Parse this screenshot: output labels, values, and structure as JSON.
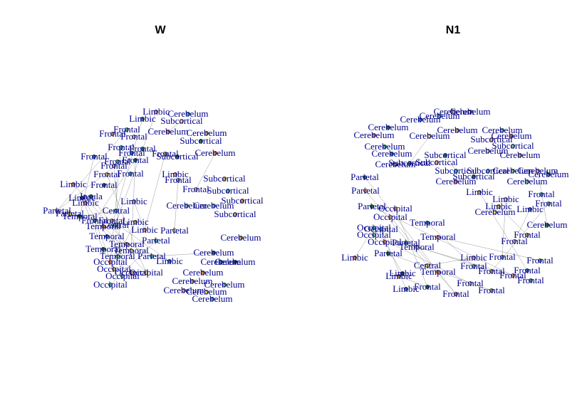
{
  "colors": {
    "label": "#00008B",
    "node_palette": [
      "#F4A582",
      "#FDDB6D",
      "#3CB9C0",
      "#2C7FB8",
      "#1B7837",
      "#F58231",
      "#C9B35B",
      "#74C3A6"
    ]
  },
  "panels": [
    {
      "id": "W",
      "title": "W",
      "nodes": [
        {
          "label": "Limbic"
        },
        {
          "label": "Subcortical"
        },
        {
          "label": "Cerebelum"
        },
        {
          "label": "Limbic"
        },
        {
          "label": "Subcortical"
        },
        {
          "label": "Cerebelum"
        },
        {
          "label": "Cerebelum"
        },
        {
          "label": "Frontal"
        },
        {
          "label": "Frontal"
        },
        {
          "label": "Frontal"
        },
        {
          "label": "Frontal"
        },
        {
          "label": "Frontal"
        },
        {
          "label": "Subcortical"
        },
        {
          "label": "Cerebelum"
        },
        {
          "label": "Frontal"
        },
        {
          "label": "Frontal"
        },
        {
          "label": "Frontal"
        },
        {
          "label": "Frontal"
        },
        {
          "label": "Frontal"
        },
        {
          "label": "Frontal"
        },
        {
          "label": "Frontal"
        },
        {
          "label": "Limbic"
        },
        {
          "label": "Subcortical"
        },
        {
          "label": "Frontal"
        },
        {
          "label": "Limbic"
        },
        {
          "label": "Frontal"
        },
        {
          "label": "Subcortical"
        },
        {
          "label": "Limbic"
        },
        {
          "label": "Insula"
        },
        {
          "label": "Limbic"
        },
        {
          "label": "Limbic"
        },
        {
          "label": "Cerebelum"
        },
        {
          "label": "Parietal"
        },
        {
          "label": "Parietal"
        },
        {
          "label": "Central"
        },
        {
          "label": "Frontal"
        },
        {
          "label": "Temporal"
        },
        {
          "label": "Temporal"
        },
        {
          "label": "Subcortical"
        },
        {
          "label": "Cerebelum"
        },
        {
          "label": "Limbic"
        },
        {
          "label": "Parietal"
        },
        {
          "label": "Parietal"
        },
        {
          "label": "Temporal"
        },
        {
          "label": "Temporal"
        },
        {
          "label": "Temporal"
        },
        {
          "label": "Cerebelum"
        },
        {
          "label": "Central"
        },
        {
          "label": "Frontal"
        },
        {
          "label": "Temporal"
        },
        {
          "label": "Parietal"
        },
        {
          "label": "Limbic"
        },
        {
          "label": "Cerebelum"
        },
        {
          "label": "Occipital"
        },
        {
          "label": "Occipital"
        },
        {
          "label": "Occipital"
        },
        {
          "label": "Occipital"
        },
        {
          "label": "Occipital"
        },
        {
          "label": "Occipital"
        },
        {
          "label": "Cerebelum"
        },
        {
          "label": "Cerebelum"
        },
        {
          "label": "Cerebelum"
        },
        {
          "label": "Cerebelum"
        },
        {
          "label": "Cerebelum"
        },
        {
          "label": "Cerebelum"
        },
        {
          "label": "Cerebelum"
        },
        {
          "label": "Cerebelum"
        },
        {
          "label": "Frontal"
        },
        {
          "label": "Frontal"
        },
        {
          "label": "Subcortical"
        },
        {
          "label": "Limbic"
        },
        {
          "label": "Temporal"
        }
      ]
    },
    {
      "id": "N1",
      "title": "N1",
      "nodes": [
        {
          "label": "Cerebelum"
        },
        {
          "label": "Cerebelum"
        },
        {
          "label": "Cerebelum"
        },
        {
          "label": "Cerebelum"
        },
        {
          "label": "Cerebelum"
        },
        {
          "label": "Cerebelum"
        },
        {
          "label": "Cerebelum"
        },
        {
          "label": "Cerebelum"
        },
        {
          "label": "Subcortical"
        },
        {
          "label": "Cerebelum"
        },
        {
          "label": "Cerebelum"
        },
        {
          "label": "Cerebelum"
        },
        {
          "label": "Subcortical"
        },
        {
          "label": "Cerebelum"
        },
        {
          "label": "Cerebelum"
        },
        {
          "label": "Cerebelum"
        },
        {
          "label": "Subcortical"
        },
        {
          "label": "Cerebelum"
        },
        {
          "label": "Subcortical"
        },
        {
          "label": "Cerebelum"
        },
        {
          "label": "Parietal"
        },
        {
          "label": "Cerebelum"
        },
        {
          "label": "Limbic"
        },
        {
          "label": "Cerebelum"
        },
        {
          "label": "Parietal"
        },
        {
          "label": "Limbic"
        },
        {
          "label": "Frontal"
        },
        {
          "label": "Limbic"
        },
        {
          "label": "Parietal"
        },
        {
          "label": "Occipital"
        },
        {
          "label": "Limbic"
        },
        {
          "label": "Frontal"
        },
        {
          "label": "Occipital"
        },
        {
          "label": "Cerebelum"
        },
        {
          "label": "Occipital"
        },
        {
          "label": "Temporal"
        },
        {
          "label": "Cerebelum"
        },
        {
          "label": "Occipital"
        },
        {
          "label": "Frontal"
        },
        {
          "label": "Occipital"
        },
        {
          "label": "Temporal"
        },
        {
          "label": "Frontal"
        },
        {
          "label": "Occipital"
        },
        {
          "label": "Parietal"
        },
        {
          "label": "Parietal"
        },
        {
          "label": "Limbic"
        },
        {
          "label": "Temporal"
        },
        {
          "label": "Frontal"
        },
        {
          "label": "Limbic"
        },
        {
          "label": "Central"
        },
        {
          "label": "Frontal"
        },
        {
          "label": "Frontal"
        },
        {
          "label": "Limbic"
        },
        {
          "label": "Temporal"
        },
        {
          "label": "Frontal"
        },
        {
          "label": "Frontal"
        },
        {
          "label": "Frontal"
        },
        {
          "label": "Frontal"
        },
        {
          "label": "Frontal"
        },
        {
          "label": "Limbic"
        },
        {
          "label": "Frontal"
        },
        {
          "label": "Frontal"
        },
        {
          "label": "Frontal"
        },
        {
          "label": "Subcortical"
        },
        {
          "label": "Cerebelum"
        },
        {
          "label": "Cerebelum"
        },
        {
          "label": "Subcortical"
        },
        {
          "label": "Subcortical"
        },
        {
          "label": "Subcortical"
        },
        {
          "label": "Limbic"
        }
      ]
    }
  ]
}
